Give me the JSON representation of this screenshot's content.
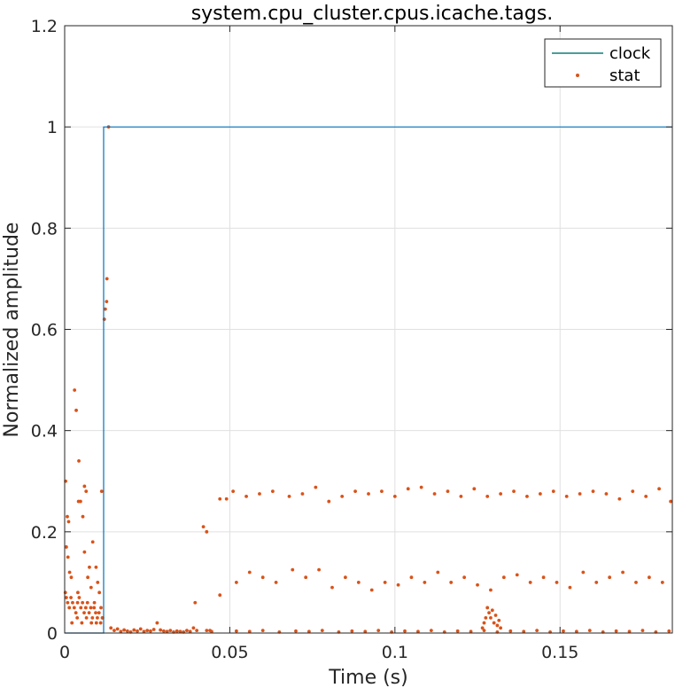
{
  "chart_data": {
    "type": "line",
    "title": "system.cpu_cluster.cpus.icache.tags.",
    "xlabel": "Time (s)",
    "ylabel": "Normalized amplitude",
    "xlim": [
      0,
      0.184
    ],
    "ylim": [
      0,
      1.2
    ],
    "grid": true,
    "legend_position": "top-right",
    "x_ticks": [
      0,
      0.05,
      0.1,
      0.15
    ],
    "x_tick_labels": [
      "0",
      "0.05",
      "0.1",
      "0.15"
    ],
    "y_ticks": [
      0,
      0.2,
      0.4,
      0.6,
      0.8,
      1,
      1.2
    ],
    "y_tick_labels": [
      "0",
      "0.2",
      "0.4",
      "0.6",
      "0.8",
      "1",
      "1.2"
    ],
    "series": [
      {
        "name": "clock",
        "kind": "line",
        "color": "#0072BD",
        "legend_color": "#0F7F7A",
        "x": [
          0,
          0.0118,
          0.0118,
          0.184
        ],
        "y": [
          0,
          0,
          1,
          1
        ]
      },
      {
        "name": "stat",
        "kind": "scatter",
        "color": "#D95319",
        "x": [
          0.0003,
          0.0008,
          0.0012,
          0.0005,
          0.001,
          0.0015,
          0.002,
          0.003,
          0.0035,
          0.004,
          0.0043,
          0.0048,
          0.0055,
          0.006,
          0.0065,
          0.007,
          0.0075,
          0.008,
          0.0085,
          0.009,
          0.0095,
          0.01,
          0.0105,
          0.011,
          0.0115,
          0.0002,
          0.0005,
          0.0009,
          0.0014,
          0.0019,
          0.0024,
          0.0029,
          0.0034,
          0.0039,
          0.0044,
          0.0049,
          0.0054,
          0.0059,
          0.0064,
          0.0069,
          0.0074,
          0.0079,
          0.0084,
          0.0089,
          0.0094,
          0.0099,
          0.0104,
          0.0109,
          0.0114,
          0.0022,
          0.0038,
          0.0052,
          0.0066,
          0.0081,
          0.0096,
          0.0042,
          0.006,
          0.0112,
          0.012,
          0.0123,
          0.0127,
          0.0128,
          0.0133,
          0.014,
          0.015,
          0.016,
          0.017,
          0.018,
          0.019,
          0.02,
          0.021,
          0.022,
          0.023,
          0.024,
          0.025,
          0.026,
          0.027,
          0.028,
          0.029,
          0.03,
          0.031,
          0.032,
          0.033,
          0.034,
          0.035,
          0.036,
          0.037,
          0.038,
          0.039,
          0.0395,
          0.04,
          0.042,
          0.043,
          0.044,
          0.047,
          0.049,
          0.051,
          0.055,
          0.059,
          0.063,
          0.068,
          0.072,
          0.076,
          0.08,
          0.084,
          0.088,
          0.092,
          0.096,
          0.1,
          0.104,
          0.108,
          0.112,
          0.116,
          0.12,
          0.124,
          0.128,
          0.132,
          0.136,
          0.14,
          0.144,
          0.148,
          0.152,
          0.156,
          0.16,
          0.164,
          0.168,
          0.172,
          0.176,
          0.18,
          0.1835,
          0.047,
          0.052,
          0.056,
          0.06,
          0.064,
          0.069,
          0.073,
          0.077,
          0.081,
          0.085,
          0.089,
          0.093,
          0.097,
          0.101,
          0.105,
          0.109,
          0.113,
          0.117,
          0.121,
          0.125,
          0.129,
          0.133,
          0.137,
          0.141,
          0.145,
          0.149,
          0.153,
          0.157,
          0.161,
          0.165,
          0.169,
          0.173,
          0.177,
          0.181,
          0.043,
          0.0445,
          0.052,
          0.056,
          0.06,
          0.065,
          0.07,
          0.074,
          0.078,
          0.083,
          0.087,
          0.091,
          0.095,
          0.099,
          0.103,
          0.107,
          0.111,
          0.115,
          0.119,
          0.123,
          0.127,
          0.131,
          0.135,
          0.139,
          0.143,
          0.147,
          0.151,
          0.155,
          0.159,
          0.163,
          0.167,
          0.171,
          0.175,
          0.179,
          0.183,
          0.1265,
          0.127,
          0.1275,
          0.128,
          0.1285,
          0.129,
          0.1295,
          0.13,
          0.1305,
          0.131,
          0.1315,
          0.132
        ],
        "y": [
          0.3,
          0.23,
          0.22,
          0.17,
          0.15,
          0.12,
          0.11,
          0.48,
          0.44,
          0.08,
          0.34,
          0.26,
          0.23,
          0.16,
          0.28,
          0.11,
          0.13,
          0.09,
          0.18,
          0.06,
          0.13,
          0.1,
          0.08,
          0.05,
          0.03,
          0.08,
          0.07,
          0.06,
          0.05,
          0.07,
          0.06,
          0.05,
          0.04,
          0.06,
          0.07,
          0.05,
          0.06,
          0.04,
          0.05,
          0.06,
          0.04,
          0.05,
          0.03,
          0.05,
          0.04,
          0.03,
          0.04,
          0.02,
          0.03,
          0.02,
          0.03,
          0.02,
          0.03,
          0.02,
          0.02,
          0.26,
          0.29,
          0.28,
          0.62,
          0.64,
          0.655,
          0.7,
          1.0,
          0.01,
          0.005,
          0.008,
          0.003,
          0.006,
          0.004,
          0.002,
          0.006,
          0.004,
          0.008,
          0.003,
          0.005,
          0.004,
          0.007,
          0.02,
          0.006,
          0.004,
          0.003,
          0.005,
          0.002,
          0.004,
          0.003,
          0.002,
          0.005,
          0.003,
          0.01,
          0.06,
          0.005,
          0.21,
          0.2,
          0.005,
          0.265,
          0.265,
          0.28,
          0.27,
          0.275,
          0.28,
          0.27,
          0.275,
          0.288,
          0.26,
          0.27,
          0.28,
          0.275,
          0.28,
          0.27,
          0.285,
          0.288,
          0.275,
          0.28,
          0.27,
          0.285,
          0.27,
          0.275,
          0.28,
          0.27,
          0.275,
          0.28,
          0.27,
          0.275,
          0.28,
          0.275,
          0.265,
          0.28,
          0.27,
          0.285,
          0.26,
          0.075,
          0.1,
          0.12,
          0.11,
          0.1,
          0.125,
          0.11,
          0.125,
          0.09,
          0.11,
          0.1,
          0.085,
          0.1,
          0.095,
          0.11,
          0.1,
          0.12,
          0.1,
          0.11,
          0.095,
          0.085,
          0.11,
          0.115,
          0.1,
          0.11,
          0.1,
          0.09,
          0.12,
          0.1,
          0.11,
          0.12,
          0.1,
          0.11,
          0.1,
          0.005,
          0.003,
          0.004,
          0.003,
          0.005,
          0.002,
          0.004,
          0.003,
          0.005,
          0.002,
          0.004,
          0.003,
          0.005,
          0.002,
          0.004,
          0.003,
          0.005,
          0.002,
          0.004,
          0.003,
          0.005,
          0.002,
          0.004,
          0.003,
          0.005,
          0.002,
          0.004,
          0.003,
          0.005,
          0.002,
          0.004,
          0.003,
          0.005,
          0.002,
          0.004,
          0.01,
          0.02,
          0.03,
          0.05,
          0.04,
          0.03,
          0.045,
          0.02,
          0.035,
          0.015,
          0.025,
          0.01
        ]
      }
    ]
  }
}
